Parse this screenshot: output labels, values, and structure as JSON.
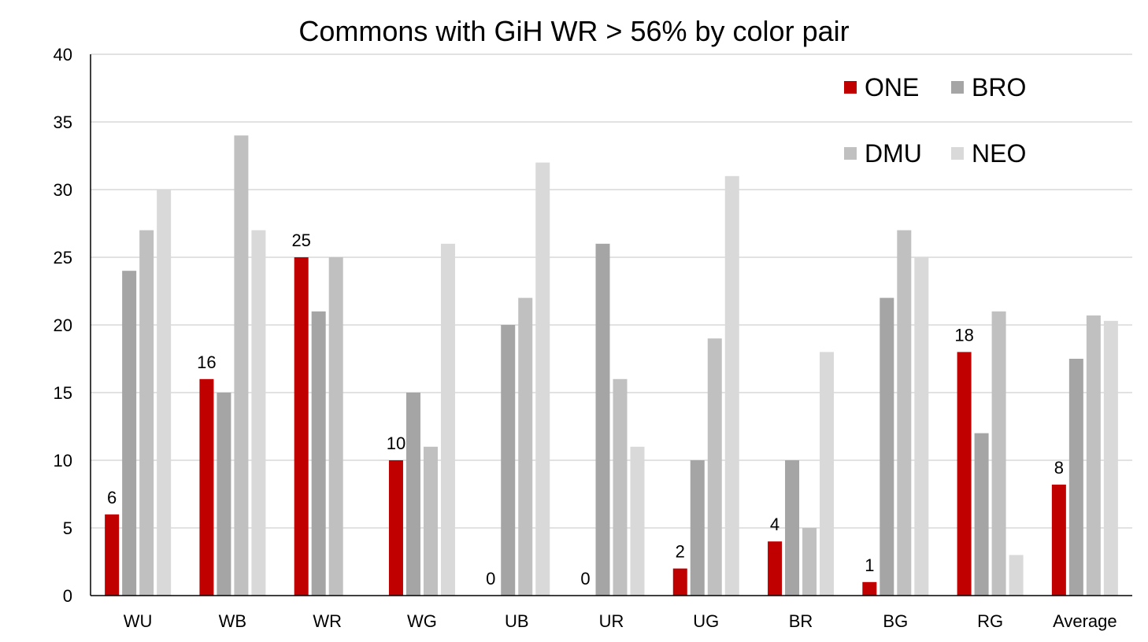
{
  "chart_data": {
    "type": "bar",
    "title": "Commons with GiH WR > 56% by color pair",
    "xlabel": "",
    "ylabel": "",
    "categories": [
      "WU",
      "WB",
      "WR",
      "WG",
      "UB",
      "UR",
      "UG",
      "BR",
      "BG",
      "RG",
      "Average"
    ],
    "ylim": [
      0,
      40
    ],
    "yticks": [
      "0",
      "5",
      "10",
      "15",
      "20",
      "25",
      "30",
      "35",
      "40"
    ],
    "grid": true,
    "legend_position": "top-right",
    "series": [
      {
        "name": "ONE",
        "color": "#c00000",
        "values": [
          6,
          16,
          25,
          10,
          0,
          0,
          2,
          4,
          1,
          18,
          8.2
        ],
        "data_labels": [
          "6",
          "16",
          "25",
          "10",
          "0",
          "0",
          "2",
          "4",
          "1",
          "18",
          "8"
        ]
      },
      {
        "name": "BRO",
        "color": "#a5a5a5",
        "values": [
          24,
          15,
          21,
          15,
          20,
          26,
          10,
          10,
          22,
          12,
          17.5
        ]
      },
      {
        "name": "DMU",
        "color": "#c0c0c0",
        "values": [
          27,
          34,
          25,
          11,
          22,
          16,
          19,
          5,
          27,
          21,
          20.7
        ]
      },
      {
        "name": "NEO",
        "color": "#d9d9d9",
        "values": [
          30,
          27,
          0,
          26,
          32,
          11,
          31,
          18,
          25,
          3,
          20.3
        ]
      }
    ],
    "colors": {
      "gridline": "#d9d9d9",
      "axis": "#000000",
      "background": "#ffffff"
    }
  }
}
